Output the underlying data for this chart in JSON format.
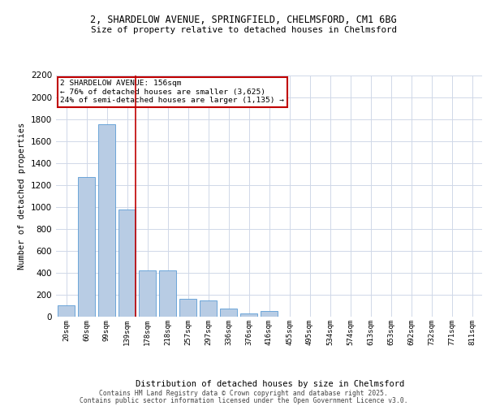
{
  "title_line1": "2, SHARDELOW AVENUE, SPRINGFIELD, CHELMSFORD, CM1 6BG",
  "title_line2": "Size of property relative to detached houses in Chelmsford",
  "xlabel": "Distribution of detached houses by size in Chelmsford",
  "ylabel": "Number of detached properties",
  "categories": [
    "20sqm",
    "60sqm",
    "99sqm",
    "139sqm",
    "178sqm",
    "218sqm",
    "257sqm",
    "297sqm",
    "336sqm",
    "376sqm",
    "416sqm",
    "455sqm",
    "495sqm",
    "534sqm",
    "574sqm",
    "613sqm",
    "653sqm",
    "692sqm",
    "732sqm",
    "771sqm",
    "811sqm"
  ],
  "values": [
    100,
    1275,
    1750,
    975,
    425,
    420,
    160,
    150,
    75,
    30,
    50,
    0,
    0,
    0,
    0,
    0,
    0,
    0,
    0,
    0,
    0
  ],
  "bar_color": "#b8cce4",
  "bar_edge_color": "#5b9bd5",
  "vline_x": 3.42,
  "vline_color": "#c00000",
  "annotation_text": "2 SHARDELOW AVENUE: 156sqm\n← 76% of detached houses are smaller (3,625)\n24% of semi-detached houses are larger (1,135) →",
  "annotation_box_color": "#ffffff",
  "annotation_box_edge": "#c00000",
  "ylim": [
    0,
    2200
  ],
  "yticks": [
    0,
    200,
    400,
    600,
    800,
    1000,
    1200,
    1400,
    1600,
    1800,
    2000,
    2200
  ],
  "background_color": "#ffffff",
  "grid_color": "#d0d8e8",
  "footer_line1": "Contains HM Land Registry data © Crown copyright and database right 2025.",
  "footer_line2": "Contains public sector information licensed under the Open Government Licence v3.0."
}
